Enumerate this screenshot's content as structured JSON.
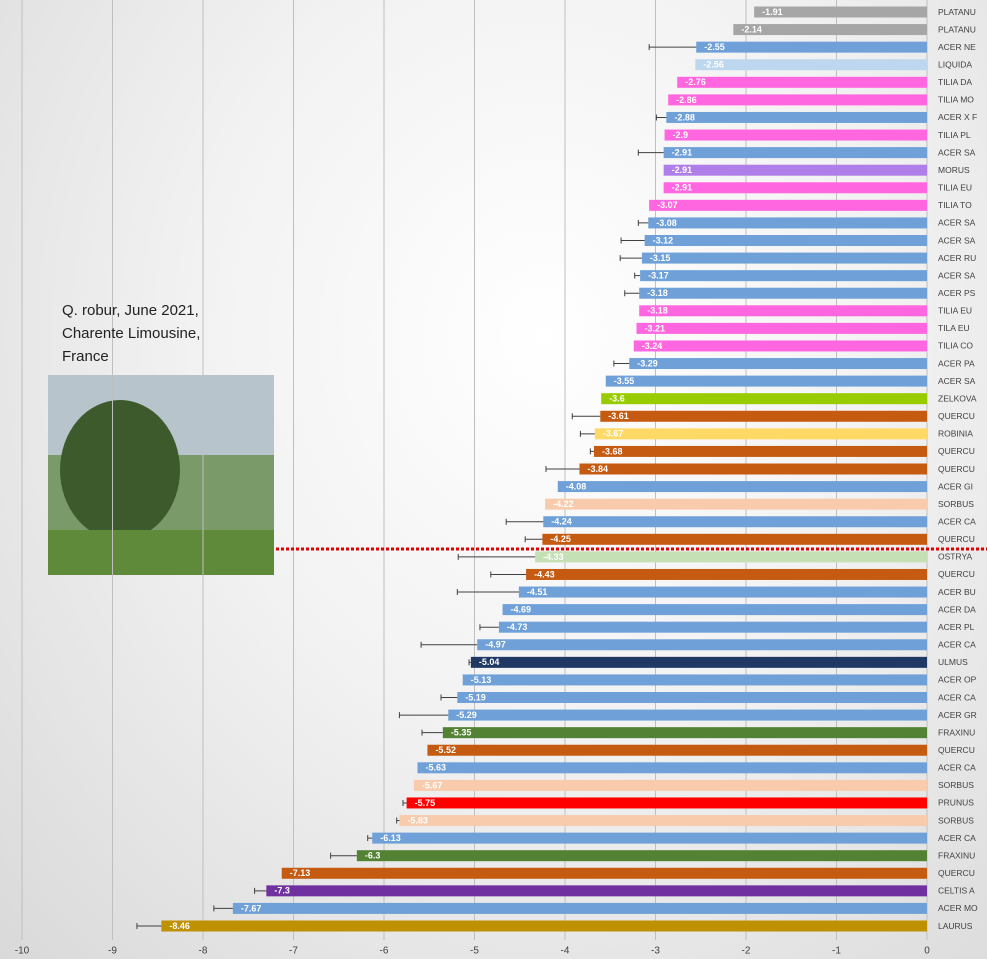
{
  "chart_data": {
    "type": "bar",
    "orientation": "horizontal",
    "categories": [
      "PLATANU",
      "PLATANU",
      "ACER NE",
      "LIQUIDA",
      "TILIA DA",
      "TILIA MO",
      "ACER X F",
      "TILIA PL",
      "ACER SA",
      "MORUS",
      "TILIA EU",
      "TILIA TO",
      "ACER SA",
      "ACER SA",
      "ACER RU",
      "ACER SA",
      "ACER PS",
      "TILIA EU",
      "TILA EU",
      "TILIA CO",
      "ACER PA",
      "ACER SA",
      "ZELKOVA",
      "QUERCU",
      "ROBINIA",
      "QUERCU",
      "QUERCU",
      "ACER GI",
      "SORBUS",
      "ACER CA",
      "QUERCU",
      "OSTRYA",
      "QUERCU",
      "ACER BU",
      "ACER DA",
      "ACER PL",
      "ACER CA",
      "ULMUS",
      "ACER OP",
      "ACER CA",
      "ACER GR",
      "FRAXINU",
      "QUERCU",
      "ACER CA",
      "SORBUS",
      "PRUNUS",
      "SORBUS",
      "ACER CA",
      "FRAXINU",
      "QUERCU",
      "CELTIS A",
      "ACER MO",
      "LAURUS"
    ],
    "values": [
      -1.91,
      -2.14,
      -2.55,
      -2.56,
      -2.76,
      -2.86,
      -2.88,
      -2.9,
      -2.91,
      -2.91,
      -2.91,
      -3.07,
      -3.08,
      -3.12,
      -3.15,
      -3.17,
      -3.18,
      -3.18,
      -3.21,
      -3.24,
      -3.29,
      -3.55,
      -3.6,
      -3.61,
      -3.67,
      -3.68,
      -3.84,
      -4.08,
      -4.22,
      -4.24,
      -4.25,
      -4.33,
      -4.43,
      -4.51,
      -4.69,
      -4.73,
      -4.97,
      -5.04,
      -5.13,
      -5.19,
      -5.29,
      -5.35,
      -5.52,
      -5.63,
      -5.67,
      -5.75,
      -5.83,
      -6.13,
      -6.3,
      -7.13,
      -7.3,
      -7.67,
      -8.46
    ],
    "errors": [
      null,
      null,
      0.52,
      null,
      null,
      null,
      0.11,
      null,
      0.28,
      null,
      null,
      null,
      0.11,
      0.26,
      0.24,
      0.06,
      0.16,
      null,
      null,
      null,
      0.17,
      null,
      null,
      0.31,
      0.16,
      0.04,
      0.37,
      null,
      null,
      0.41,
      0.19,
      0.85,
      0.39,
      0.68,
      null,
      0.21,
      0.62,
      0.02,
      null,
      0.18,
      0.54,
      0.23,
      null,
      null,
      null,
      0.04,
      0.03,
      0.05,
      0.29,
      null,
      0.13,
      0.21,
      0.27
    ],
    "colors": [
      "#a6a6a6",
      "#a6a6a6",
      "#6fa1d8",
      "#bdd7ee",
      "#ff66e0",
      "#ff66e0",
      "#6fa1d8",
      "#ff66e0",
      "#6fa1d8",
      "#b07ee8",
      "#ff66e0",
      "#ff66e0",
      "#6fa1d8",
      "#6fa1d8",
      "#6fa1d8",
      "#6fa1d8",
      "#6fa1d8",
      "#ff66e0",
      "#ff66e0",
      "#ff66e0",
      "#6fa1d8",
      "#6fa1d8",
      "#99cc00",
      "#c55a11",
      "#ffd966",
      "#c55a11",
      "#c55a11",
      "#6fa1d8",
      "#f8cbad",
      "#6fa1d8",
      "#c55a11",
      "#c5e0b4",
      "#c55a11",
      "#6fa1d8",
      "#6fa1d8",
      "#6fa1d8",
      "#6fa1d8",
      "#1f3864",
      "#6fa1d8",
      "#6fa1d8",
      "#6fa1d8",
      "#548235",
      "#c55a11",
      "#6fa1d8",
      "#f8cbad",
      "#ff0000",
      "#f8cbad",
      "#6fa1d8",
      "#548235",
      "#c55a11",
      "#7030a0",
      "#6fa1d8",
      "#bf9000"
    ],
    "xlim": [
      -10,
      0
    ],
    "xticks": [
      -10,
      -9,
      -8,
      -7,
      -6,
      -5,
      -4,
      -3,
      -2,
      -1,
      0
    ],
    "grid": true,
    "annotation": [
      "Q. robur, June 2021,",
      "Charente Limousine,",
      "France"
    ]
  }
}
